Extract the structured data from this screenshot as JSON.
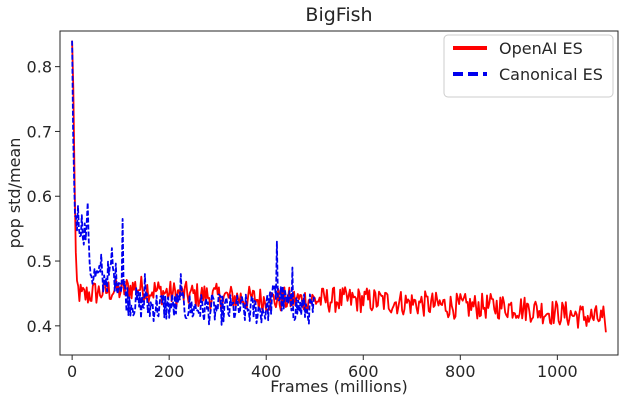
{
  "chart_data": {
    "type": "line",
    "title": "BigFish",
    "xlabel": "Frames (millions)",
    "ylabel": "pop std/mean",
    "xlim": [
      -25,
      1125
    ],
    "ylim": [
      0.355,
      0.855
    ],
    "xticks": [
      0,
      200,
      400,
      600,
      800,
      1000
    ],
    "yticks": [
      0.4,
      0.5,
      0.6,
      0.7,
      0.8
    ],
    "grid": false,
    "legend": "top-right",
    "series": [
      {
        "name": "OpenAI ES",
        "color": "#ff0000",
        "dash": "solid",
        "anchors": [
          [
            0,
            0.84
          ],
          [
            2,
            0.8
          ],
          [
            5,
            0.62
          ],
          [
            8,
            0.47
          ],
          [
            12,
            0.455
          ],
          [
            20,
            0.445
          ],
          [
            40,
            0.45
          ],
          [
            80,
            0.455
          ],
          [
            100,
            0.455
          ],
          [
            130,
            0.46
          ],
          [
            200,
            0.45
          ],
          [
            300,
            0.445
          ],
          [
            400,
            0.44
          ],
          [
            500,
            0.44
          ],
          [
            600,
            0.44
          ],
          [
            700,
            0.435
          ],
          [
            800,
            0.43
          ],
          [
            900,
            0.43
          ],
          [
            1000,
            0.42
          ],
          [
            1050,
            0.415
          ],
          [
            1100,
            0.41
          ]
        ],
        "noise": 0.02,
        "step": 2.5,
        "final": [
          [
            1095,
            0.43
          ],
          [
            1100,
            0.39
          ]
        ]
      },
      {
        "name": "Canonical ES",
        "color": "#0000ee",
        "dash": "dashed",
        "anchors": [
          [
            0,
            0.84
          ],
          [
            2,
            0.7
          ],
          [
            5,
            0.58
          ],
          [
            10,
            0.565
          ],
          [
            20,
            0.555
          ],
          [
            30,
            0.54
          ],
          [
            40,
            0.48
          ],
          [
            60,
            0.47
          ],
          [
            80,
            0.48
          ],
          [
            100,
            0.47
          ],
          [
            115,
            0.44
          ],
          [
            150,
            0.43
          ],
          [
            200,
            0.43
          ],
          [
            300,
            0.425
          ],
          [
            400,
            0.425
          ],
          [
            420,
            0.45
          ],
          [
            450,
            0.43
          ],
          [
            500,
            0.425
          ]
        ],
        "noise": 0.024,
        "step": 2.0,
        "spikes": [
          [
            12,
            0.585
          ],
          [
            32,
            0.59
          ],
          [
            60,
            0.51
          ],
          [
            82,
            0.52
          ],
          [
            105,
            0.565
          ],
          [
            150,
            0.48
          ],
          [
            225,
            0.48
          ],
          [
            422,
            0.53
          ],
          [
            455,
            0.49
          ]
        ]
      }
    ]
  }
}
